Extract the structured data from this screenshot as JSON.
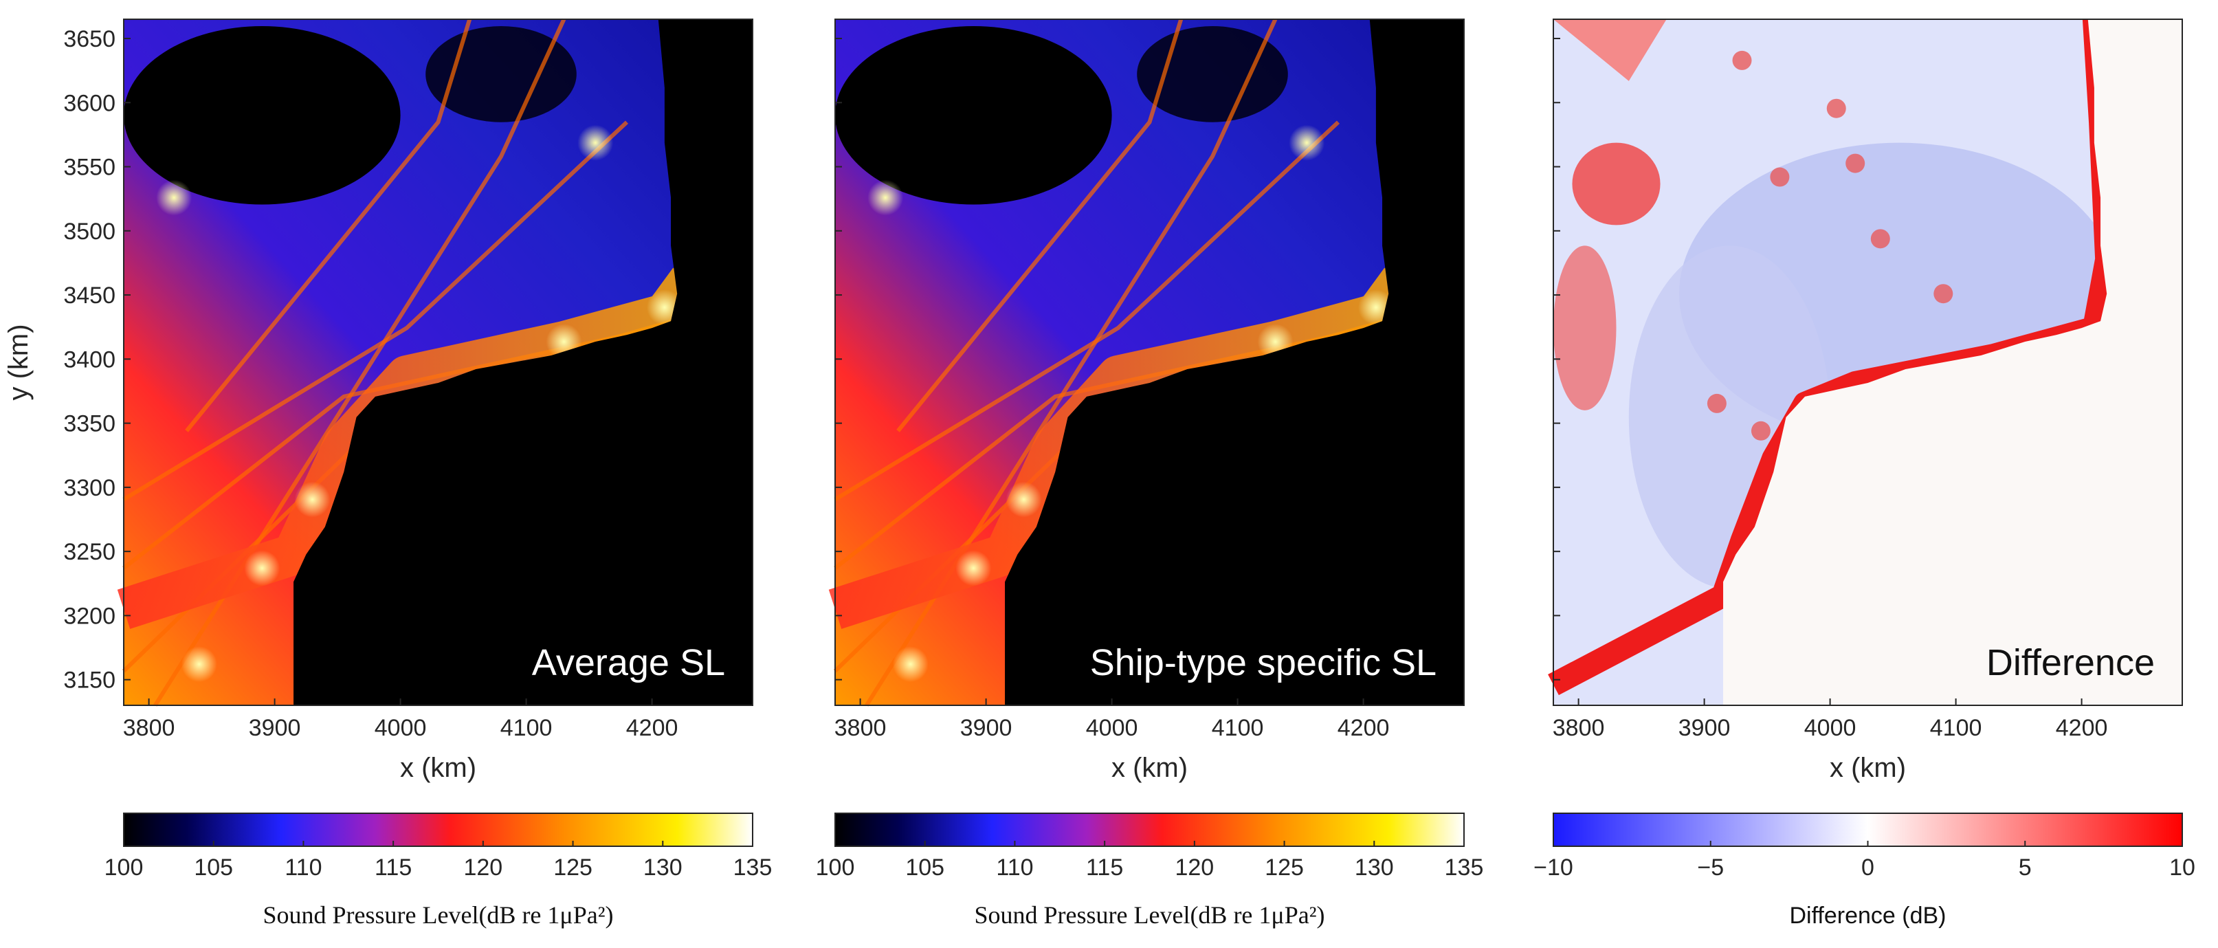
{
  "chart_data": [
    {
      "type": "heatmap",
      "title": "",
      "panel_label": "Average SL",
      "panel_label_color": "#ffffff",
      "xlabel": "x (km)",
      "ylabel": "y (km)",
      "xlim": [
        3780,
        4280
      ],
      "ylim": [
        3130,
        3665
      ],
      "xticks": [
        3800,
        3900,
        4000,
        4100,
        4200
      ],
      "yticks": [
        3150,
        3200,
        3250,
        3300,
        3350,
        3400,
        3450,
        3500,
        3550,
        3600,
        3650
      ],
      "colormap": "black-blue-red-yellow-white (hot)",
      "colorbar": {
        "label": "Sound Pressure Level(dB re 1μPa²)",
        "range": [
          100,
          135
        ],
        "ticks": [
          100,
          105,
          110,
          115,
          120,
          125,
          130,
          135
        ]
      }
    },
    {
      "type": "heatmap",
      "title": "",
      "panel_label": "Ship-type specific SL",
      "panel_label_color": "#ffffff",
      "xlabel": "x (km)",
      "ylabel": "",
      "xlim": [
        3780,
        4280
      ],
      "ylim": [
        3130,
        3665
      ],
      "xticks": [
        3800,
        3900,
        4000,
        4100,
        4200
      ],
      "yticks": [],
      "colormap": "black-blue-red-yellow-white (hot)",
      "colorbar": {
        "label": "Sound Pressure Level(dB re 1μPa²)",
        "range": [
          100,
          135
        ],
        "ticks": [
          100,
          105,
          110,
          115,
          120,
          125,
          130,
          135
        ]
      }
    },
    {
      "type": "heatmap",
      "title": "",
      "panel_label": "Difference",
      "panel_label_color": "#111111",
      "xlabel": "x (km)",
      "ylabel": "",
      "xlim": [
        3780,
        4280
      ],
      "ylim": [
        3130,
        3665
      ],
      "xticks": [
        3800,
        3900,
        4000,
        4100,
        4200
      ],
      "yticks": [],
      "colormap": "blue-white-red (diverging)",
      "colorbar": {
        "label": "Difference (dB)",
        "range": [
          -10,
          10
        ],
        "ticks": [
          -10,
          -5,
          0,
          5,
          10
        ],
        "tick_labels": [
          "−10",
          "−5",
          "0",
          "5",
          "10"
        ]
      }
    }
  ]
}
